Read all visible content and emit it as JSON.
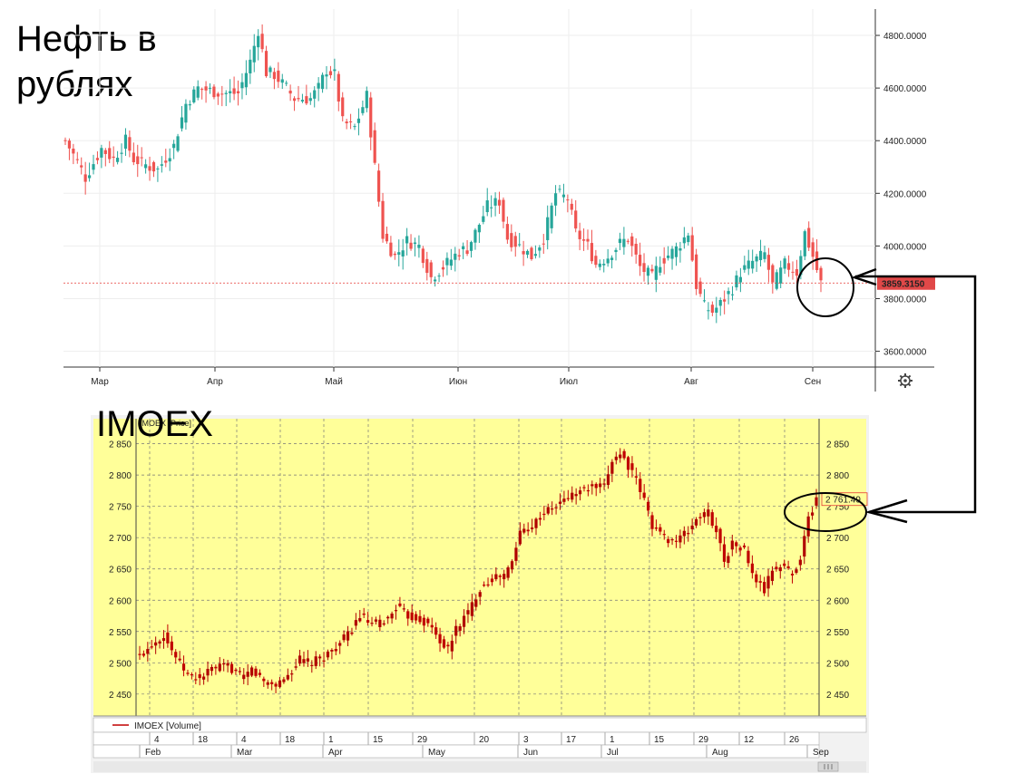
{
  "annotations": {
    "oil_title": "Нефть в\nрублях",
    "imoex_title": "IMOEX"
  },
  "chart_data": [
    {
      "type": "candlestick",
      "ylim": [
        3540,
        4900
      ],
      "yticks": [
        "4800.0000",
        "4600.0000",
        "4400.0000",
        "4200.0000",
        "4000.0000",
        "3800.0000",
        "3600.0000"
      ],
      "ytick_values": [
        4800,
        4600,
        4400,
        4200,
        4000,
        3800,
        3600
      ],
      "xticks": [
        "Мар",
        "Апр",
        "Май",
        "Июн",
        "Июл",
        "Авг",
        "Сен"
      ],
      "last_price": 3859.315,
      "last_price_label": "3859.3150",
      "colors": {
        "up": "#26a69a",
        "down": "#ef5350"
      },
      "series": [
        {
          "name": "",
          "anchors": [
            [
              0,
              4400
            ],
            [
              3,
              4320
            ],
            [
              5,
              4260
            ],
            [
              9,
              4370
            ],
            [
              12,
              4330
            ],
            [
              15,
              4400
            ],
            [
              17,
              4330
            ],
            [
              21,
              4300
            ],
            [
              23,
              4290
            ],
            [
              27,
              4380
            ],
            [
              30,
              4540
            ],
            [
              33,
              4600
            ],
            [
              36,
              4590
            ],
            [
              39,
              4580
            ],
            [
              43,
              4580
            ],
            [
              46,
              4700
            ],
            [
              48,
              4820
            ],
            [
              50,
              4660
            ],
            [
              52,
              4650
            ],
            [
              55,
              4600
            ],
            [
              57,
              4560
            ],
            [
              61,
              4560
            ],
            [
              63,
              4600
            ],
            [
              65,
              4670
            ],
            [
              67,
              4650
            ],
            [
              69,
              4470
            ],
            [
              72,
              4450
            ],
            [
              75,
              4570
            ],
            [
              77,
              4300
            ],
            [
              79,
              4040
            ],
            [
              82,
              3960
            ],
            [
              85,
              4020
            ],
            [
              88,
              4000
            ],
            [
              91,
              3880
            ],
            [
              94,
              3920
            ],
            [
              98,
              3980
            ],
            [
              100,
              3990
            ],
            [
              102,
              4050
            ],
            [
              105,
              4150
            ],
            [
              108,
              4170
            ],
            [
              110,
              4030
            ],
            [
              113,
              4000
            ],
            [
              116,
              3960
            ],
            [
              119,
              4030
            ],
            [
              122,
              4200
            ],
            [
              125,
              4180
            ],
            [
              127,
              4050
            ],
            [
              130,
              4000
            ],
            [
              132,
              3930
            ],
            [
              135,
              3960
            ],
            [
              138,
              4010
            ],
            [
              140,
              4030
            ],
            [
              143,
              3920
            ],
            [
              146,
              3880
            ],
            [
              148,
              3940
            ],
            [
              152,
              3990
            ],
            [
              155,
              4050
            ],
            [
              157,
              3850
            ],
            [
              159,
              3770
            ],
            [
              161,
              3750
            ],
            [
              163,
              3780
            ],
            [
              166,
              3840
            ],
            [
              168,
              3900
            ],
            [
              171,
              3940
            ],
            [
              174,
              3970
            ],
            [
              176,
              3850
            ],
            [
              179,
              3930
            ],
            [
              182,
              3900
            ],
            [
              184,
              4050
            ],
            [
              186,
              3960
            ],
            [
              188,
              3859
            ]
          ]
        }
      ]
    },
    {
      "type": "candlestick",
      "ylim": [
        2415,
        2890
      ],
      "yticks": [
        "2 850",
        "2 800",
        "2 750",
        "2 700",
        "2 650",
        "2 600",
        "2 550",
        "2 500",
        "2 450"
      ],
      "ytick_values": [
        2850,
        2800,
        2750,
        2700,
        2650,
        2600,
        2550,
        2500,
        2450
      ],
      "series_label": "IMOEX [Price]",
      "volume_label": "IMOEX [Volume]",
      "day_ticks": [
        "4",
        "18",
        "4",
        "18",
        "1",
        "15",
        "29",
        "20",
        "3",
        "17",
        "1",
        "15",
        "29",
        "12",
        "26"
      ],
      "month_ticks": [
        "Feb",
        "Mar",
        "Apr",
        "May",
        "Jun",
        "Jul",
        "Aug",
        "Sep"
      ],
      "last_price": 2761.49,
      "last_price_label": "2 761.49",
      "colors": {
        "up": "#b00000",
        "down": "#c00000",
        "background": "#ffff99"
      },
      "series": [
        {
          "name": "IMOEX",
          "anchors": [
            [
              0,
              2510
            ],
            [
              3,
              2530
            ],
            [
              6,
              2545
            ],
            [
              8,
              2520
            ],
            [
              10,
              2500
            ],
            [
              12,
              2480
            ],
            [
              15,
              2475
            ],
            [
              18,
              2490
            ],
            [
              22,
              2495
            ],
            [
              26,
              2475
            ],
            [
              28,
              2490
            ],
            [
              31,
              2470
            ],
            [
              34,
              2465
            ],
            [
              37,
              2480
            ],
            [
              40,
              2505
            ],
            [
              43,
              2500
            ],
            [
              46,
              2510
            ],
            [
              49,
              2525
            ],
            [
              52,
              2545
            ],
            [
              55,
              2575
            ],
            [
              58,
              2560
            ],
            [
              62,
              2570
            ],
            [
              64,
              2590
            ],
            [
              67,
              2575
            ],
            [
              70,
              2570
            ],
            [
              73,
              2555
            ],
            [
              75,
              2535
            ],
            [
              77,
              2520
            ],
            [
              79,
              2555
            ],
            [
              82,
              2580
            ],
            [
              85,
              2620
            ],
            [
              88,
              2635
            ],
            [
              91,
              2640
            ],
            [
              93,
              2660
            ],
            [
              95,
              2710
            ],
            [
              98,
              2720
            ],
            [
              101,
              2740
            ],
            [
              104,
              2750
            ],
            [
              107,
              2765
            ],
            [
              110,
              2775
            ],
            [
              113,
              2780
            ],
            [
              116,
              2780
            ],
            [
              118,
              2825
            ],
            [
              120,
              2835
            ],
            [
              122,
              2815
            ],
            [
              124,
              2790
            ],
            [
              126,
              2760
            ],
            [
              128,
              2720
            ],
            [
              131,
              2700
            ],
            [
              134,
              2695
            ],
            [
              137,
              2710
            ],
            [
              139,
              2730
            ],
            [
              142,
              2740
            ],
            [
              144,
              2710
            ],
            [
              146,
              2665
            ],
            [
              148,
              2690
            ],
            [
              151,
              2680
            ],
            [
              153,
              2640
            ],
            [
              156,
              2615
            ],
            [
              158,
              2650
            ],
            [
              161,
              2655
            ],
            [
              163,
              2640
            ],
            [
              165,
              2670
            ],
            [
              167,
              2730
            ],
            [
              169,
              2761
            ]
          ]
        }
      ]
    }
  ],
  "settings_icon": "gear-icon",
  "scrollbar_icon": "scroll-grip-icon"
}
